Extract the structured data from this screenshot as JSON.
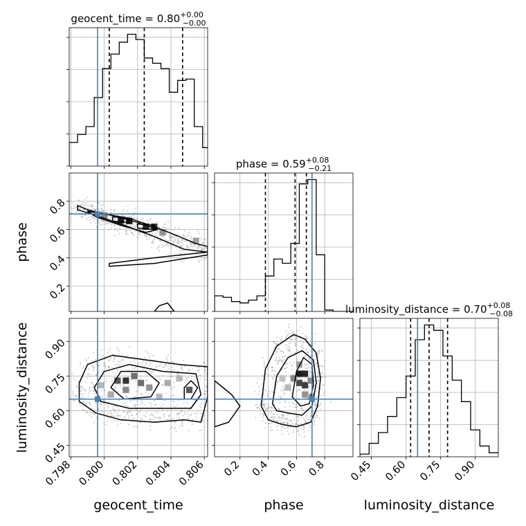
{
  "chart_data": {
    "type": "corner",
    "parameters": [
      "geocent_time",
      "phase",
      "luminosity_distance"
    ],
    "truths": {
      "geocent_time": 0.7996,
      "phase": 0.71,
      "luminosity_distance": 0.65
    },
    "ranges": {
      "geocent_time": [
        0.7979,
        0.8062
      ],
      "phase": [
        0.02,
        1.0
      ],
      "luminosity_distance": [
        0.4,
        1.0
      ]
    },
    "ticks": {
      "geocent_time": [
        0.798,
        0.8,
        0.802,
        0.804,
        0.806
      ],
      "phase": [
        0.2,
        0.4,
        0.6,
        0.8
      ],
      "luminosity_distance": [
        0.45,
        0.6,
        0.75,
        0.9
      ]
    },
    "tick_labels": {
      "geocent_time": [
        "0.798",
        "0.800",
        "0.802",
        "0.804",
        "0.806"
      ],
      "phase": [
        "0.2",
        "0.4",
        "0.6",
        "0.8"
      ],
      "luminosity_distance": [
        "0.45",
        "0.60",
        "0.75",
        "0.90"
      ]
    },
    "axis_labels": {
      "geocent_time": "geocent_time",
      "phase": "phase",
      "luminosity_distance": "luminosity_distance"
    },
    "titles": [
      {
        "param": "geocent_time",
        "name": "geocent_time",
        "value": "0.80",
        "plus": "+0.00",
        "minus": "−0.00"
      },
      {
        "param": "phase",
        "name": "phase",
        "value": "0.59",
        "plus": "+0.08",
        "minus": "−0.21"
      },
      {
        "param": "luminosity_distance",
        "name": "luminosity_distance",
        "value": "0.70",
        "plus": "+0.08",
        "minus": "−0.08"
      }
    ],
    "quantiles": {
      "geocent_time": [
        0.8003,
        0.8024,
        0.8047
      ],
      "phase": [
        0.38,
        0.59,
        0.67
      ],
      "luminosity_distance": [
        0.62,
        0.7,
        0.78
      ]
    },
    "histograms": {
      "geocent_time": {
        "edges": [
          0.7979,
          0.7984,
          0.7989,
          0.7994,
          0.7999,
          0.8004,
          0.8009,
          0.8014,
          0.8019,
          0.8024,
          0.8029,
          0.8034,
          0.8039,
          0.8044,
          0.8049,
          0.8054,
          0.8059,
          0.8062
        ],
        "counts": [
          18,
          24,
          30,
          52,
          74,
          85,
          94,
          100,
          96,
          82,
          78,
          74,
          56,
          65,
          66,
          30,
          14
        ]
      },
      "phase": {
        "edges": [
          0.02,
          0.08,
          0.14,
          0.2,
          0.26,
          0.32,
          0.38,
          0.44,
          0.5,
          0.56,
          0.62,
          0.68,
          0.74,
          0.8,
          0.86,
          0.92,
          1.0
        ],
        "counts": [
          11,
          10,
          7,
          6,
          8,
          11,
          25,
          37,
          34,
          48,
          90,
          93,
          40,
          1,
          0,
          0
        ]
      },
      "luminosity_distance": {
        "edges": [
          0.4,
          0.44,
          0.48,
          0.52,
          0.56,
          0.6,
          0.64,
          0.68,
          0.72,
          0.76,
          0.8,
          0.84,
          0.88,
          0.92,
          0.96,
          1.0
        ],
        "counts": [
          2,
          10,
          18,
          30,
          44,
          60,
          87,
          98,
          94,
          75,
          57,
          41,
          20,
          8,
          3
        ]
      }
    },
    "contours": {
      "phase__geocent_time": [
        [
          [
            0.7984,
            0.77
          ],
          [
            0.799,
            0.74
          ],
          [
            0.8,
            0.71
          ],
          [
            0.8015,
            0.68
          ],
          [
            0.803,
            0.62
          ],
          [
            0.8045,
            0.55
          ],
          [
            0.8055,
            0.5
          ],
          [
            0.8062,
            0.48
          ],
          [
            0.8062,
            0.44
          ],
          [
            0.8048,
            0.46
          ],
          [
            0.803,
            0.55
          ],
          [
            0.8012,
            0.63
          ],
          [
            0.7995,
            0.7
          ],
          [
            0.7984,
            0.74
          ]
        ],
        [
          [
            0.799,
            0.73
          ],
          [
            0.8005,
            0.7
          ],
          [
            0.802,
            0.65
          ],
          [
            0.8032,
            0.6
          ],
          [
            0.8025,
            0.58
          ],
          [
            0.801,
            0.63
          ],
          [
            0.7995,
            0.69
          ]
        ],
        [
          [
            0.8005,
            0.69
          ],
          [
            0.8015,
            0.68
          ],
          [
            0.8015,
            0.65
          ],
          [
            0.8005,
            0.66
          ]
        ],
        [
          [
            0.802,
            0.64
          ],
          [
            0.803,
            0.63
          ],
          [
            0.803,
            0.6
          ],
          [
            0.802,
            0.61
          ]
        ],
        [
          [
            0.8003,
            0.36
          ],
          [
            0.803,
            0.4
          ],
          [
            0.8062,
            0.44
          ],
          [
            0.8062,
            0.42
          ],
          [
            0.803,
            0.36
          ],
          [
            0.8003,
            0.34
          ]
        ],
        [
          [
            0.803,
            0.02
          ],
          [
            0.8033,
            0.06
          ],
          [
            0.8038,
            0.08
          ],
          [
            0.8042,
            0.02
          ]
        ]
      ],
      "luminosity_distance__geocent_time": [
        [
          [
            0.7985,
            0.72
          ],
          [
            0.799,
            0.8
          ],
          [
            0.8005,
            0.84
          ],
          [
            0.8025,
            0.82
          ],
          [
            0.8045,
            0.8
          ],
          [
            0.8062,
            0.79
          ],
          [
            0.8062,
            0.66
          ],
          [
            0.8058,
            0.55
          ],
          [
            0.8048,
            0.56
          ],
          [
            0.803,
            0.55
          ],
          [
            0.801,
            0.56
          ],
          [
            0.7995,
            0.59
          ],
          [
            0.7985,
            0.64
          ]
        ],
        [
          [
            0.7994,
            0.7
          ],
          [
            0.8,
            0.77
          ],
          [
            0.8015,
            0.8
          ],
          [
            0.8035,
            0.77
          ],
          [
            0.8055,
            0.76
          ],
          [
            0.8058,
            0.67
          ],
          [
            0.8052,
            0.61
          ],
          [
            0.8035,
            0.61
          ],
          [
            0.8015,
            0.61
          ],
          [
            0.7998,
            0.64
          ]
        ],
        [
          [
            0.8004,
            0.7
          ],
          [
            0.801,
            0.77
          ],
          [
            0.8025,
            0.77
          ],
          [
            0.8033,
            0.72
          ],
          [
            0.8028,
            0.66
          ],
          [
            0.8012,
            0.65
          ]
        ],
        [
          [
            0.8048,
            0.7
          ],
          [
            0.8052,
            0.73
          ],
          [
            0.8056,
            0.7
          ],
          [
            0.8052,
            0.65
          ],
          [
            0.8048,
            0.65
          ]
        ]
      ],
      "luminosity_distance__phase": [
        [
          [
            0.35,
            0.62
          ],
          [
            0.38,
            0.78
          ],
          [
            0.46,
            0.88
          ],
          [
            0.58,
            0.93
          ],
          [
            0.66,
            0.91
          ],
          [
            0.74,
            0.85
          ],
          [
            0.77,
            0.74
          ],
          [
            0.75,
            0.62
          ],
          [
            0.7,
            0.55
          ],
          [
            0.6,
            0.53
          ],
          [
            0.5,
            0.54
          ],
          [
            0.4,
            0.56
          ]
        ],
        [
          [
            0.43,
            0.63
          ],
          [
            0.46,
            0.75
          ],
          [
            0.54,
            0.83
          ],
          [
            0.64,
            0.86
          ],
          [
            0.72,
            0.82
          ],
          [
            0.74,
            0.72
          ],
          [
            0.71,
            0.62
          ],
          [
            0.64,
            0.58
          ],
          [
            0.54,
            0.59
          ],
          [
            0.46,
            0.6
          ]
        ],
        [
          [
            0.57,
            0.66
          ],
          [
            0.6,
            0.77
          ],
          [
            0.65,
            0.83
          ],
          [
            0.71,
            0.8
          ],
          [
            0.72,
            0.71
          ],
          [
            0.69,
            0.63
          ],
          [
            0.63,
            0.62
          ]
        ],
        [
          [
            0.02,
            0.73
          ],
          [
            0.14,
            0.67
          ],
          [
            0.2,
            0.62
          ],
          [
            0.12,
            0.55
          ],
          [
            0.02,
            0.53
          ]
        ]
      ]
    },
    "density_cells": {
      "luminosity_distance__geocent_time": [
        [
          0.8008,
          0.73,
          0.7
        ],
        [
          0.8013,
          0.73,
          0.85
        ],
        [
          0.8018,
          0.75,
          0.6
        ],
        [
          0.8013,
          0.69,
          0.5
        ],
        [
          0.8022,
          0.72,
          0.6
        ],
        [
          0.8027,
          0.7,
          0.45
        ],
        [
          0.8038,
          0.72,
          0.35
        ],
        [
          0.8051,
          0.69,
          0.7
        ],
        [
          0.7998,
          0.71,
          0.3
        ],
        [
          0.8004,
          0.67,
          0.35
        ],
        [
          0.8033,
          0.66,
          0.3
        ],
        [
          0.8045,
          0.74,
          0.3
        ]
      ],
      "luminosity_distance__phase": [
        [
          0.62,
          0.76,
          0.95
        ],
        [
          0.66,
          0.76,
          0.9
        ],
        [
          0.62,
          0.72,
          0.75
        ],
        [
          0.66,
          0.71,
          0.8
        ],
        [
          0.58,
          0.74,
          0.5
        ],
        [
          0.7,
          0.73,
          0.5
        ],
        [
          0.62,
          0.8,
          0.4
        ],
        [
          0.66,
          0.67,
          0.45
        ],
        [
          0.54,
          0.7,
          0.3
        ],
        [
          0.5,
          0.74,
          0.25
        ],
        [
          0.7,
          0.66,
          0.35
        ]
      ],
      "phase__geocent_time": [
        [
          0.801,
          0.665,
          0.95
        ],
        [
          0.8015,
          0.66,
          0.95
        ],
        [
          0.8025,
          0.62,
          0.9
        ],
        [
          0.803,
          0.62,
          0.85
        ],
        [
          0.8,
          0.7,
          0.5
        ],
        [
          0.8035,
          0.58,
          0.45
        ],
        [
          0.8055,
          0.52,
          0.4
        ]
      ]
    },
    "colors": {
      "truth": "#4682b4",
      "hist": "#000000",
      "grid": "#b0b0b0",
      "points": "#999999"
    }
  }
}
